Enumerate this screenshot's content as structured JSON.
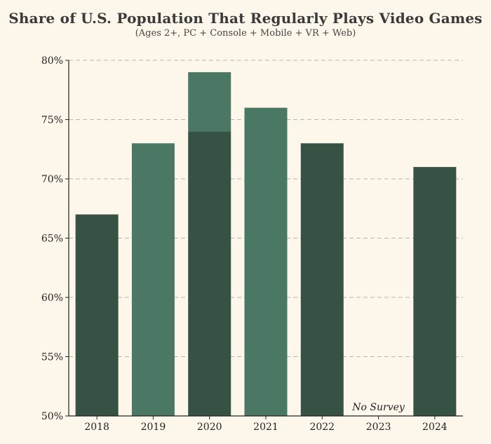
{
  "chart_data": {
    "type": "bar",
    "title": "Share of U.S. Population That Regularly Plays Video Games",
    "subtitle": "(Ages 2+, PC + Console + Mobile + VR + Web)",
    "xlabel": "",
    "ylabel": "",
    "categories": [
      "2018",
      "2019",
      "2020",
      "2021",
      "2022",
      "2023",
      "2024"
    ],
    "values": [
      67,
      73,
      74,
      76,
      73,
      null,
      71
    ],
    "stacked_segment": {
      "category": "2020",
      "from": 74,
      "to": 79
    },
    "ylim": [
      50,
      80
    ],
    "yticks": [
      50,
      55,
      60,
      65,
      70,
      75,
      80
    ],
    "ytick_labels": [
      "50%",
      "55%",
      "60%",
      "65%",
      "70%",
      "75%",
      "80%"
    ],
    "annotations": [
      {
        "category": "2023",
        "text": "No Survey"
      }
    ],
    "grid": true,
    "colors": {
      "dark": "#365245",
      "light": "#4a7864",
      "grid": "#b5b5ad",
      "background": "#fdf6ea"
    },
    "bar_colors": [
      "dark",
      "light",
      "dark",
      "light",
      "dark",
      "",
      "dark"
    ]
  }
}
